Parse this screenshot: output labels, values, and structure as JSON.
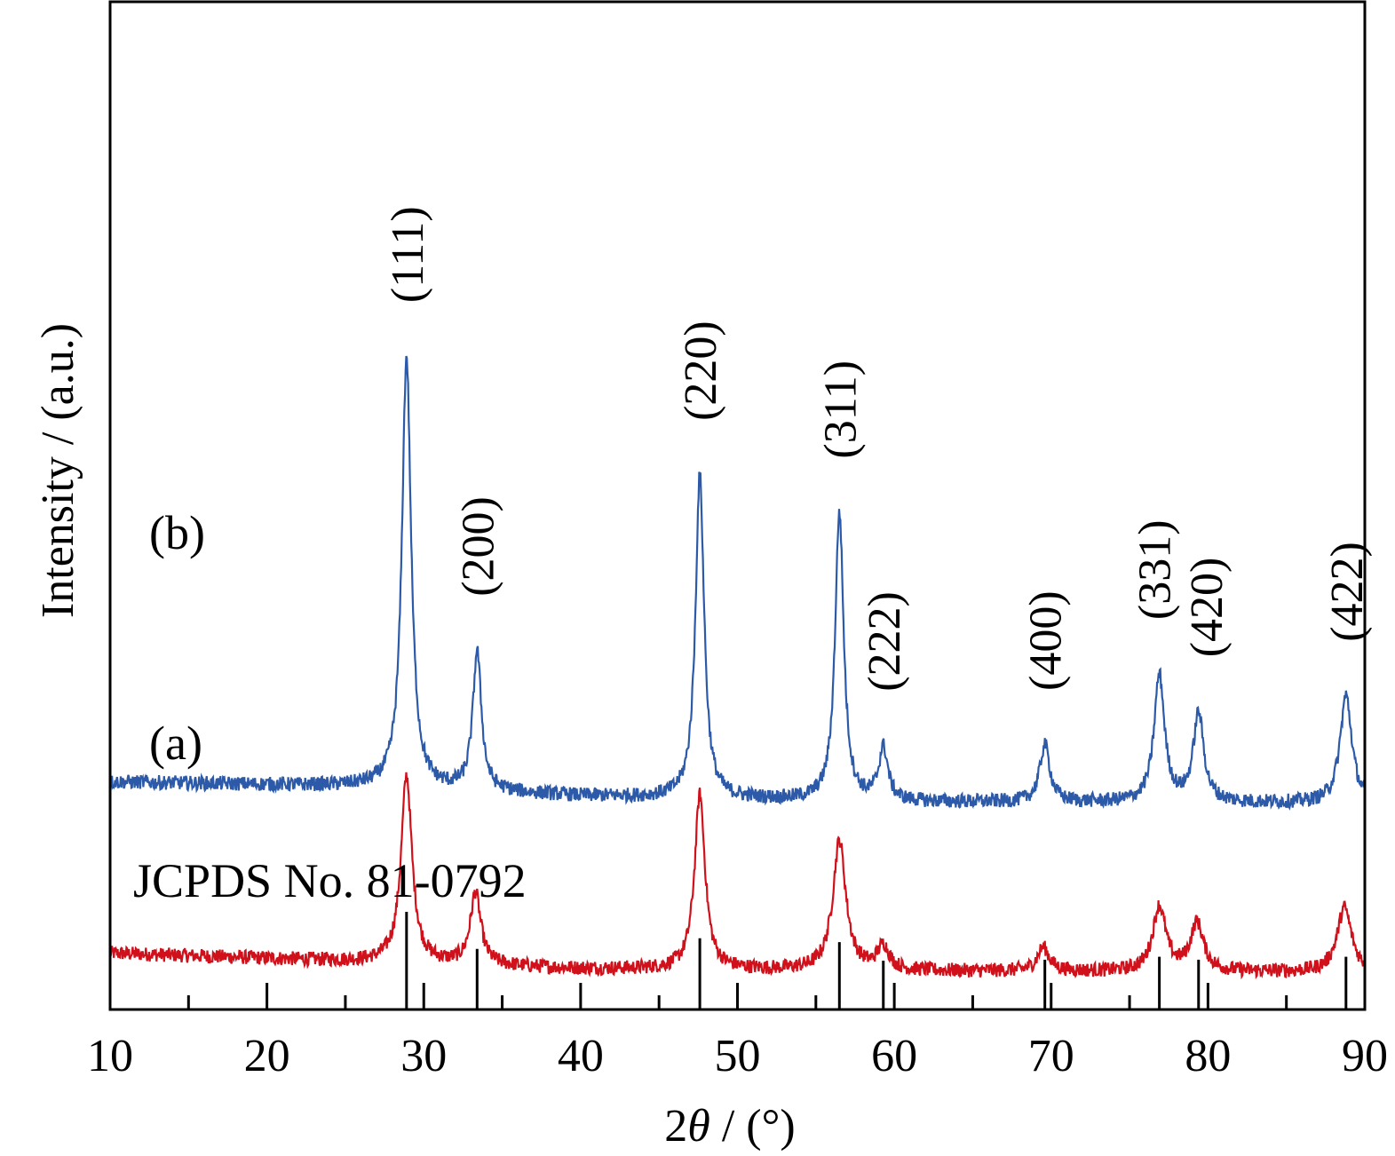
{
  "chart_data": {
    "type": "line",
    "xlabel_prefix": "2",
    "xlabel_theta": "θ",
    "xlabel_suffix": " / (°)",
    "ylabel": "Intensity / (a.u.)",
    "xlim": [
      10,
      90
    ],
    "xticks": [
      10,
      20,
      30,
      40,
      50,
      60,
      70,
      80,
      90
    ],
    "xticks_minor": [
      15,
      25,
      35,
      45,
      55,
      65,
      75,
      85
    ],
    "reference_label": "JCPDS No. 81-0792",
    "reference_lines": [
      {
        "x": 28.9,
        "rel": 1.0
      },
      {
        "x": 33.4,
        "rel": 0.62
      },
      {
        "x": 47.6,
        "rel": 0.73
      },
      {
        "x": 56.5,
        "rel": 0.69
      },
      {
        "x": 59.3,
        "rel": 0.5
      },
      {
        "x": 69.6,
        "rel": 0.51
      },
      {
        "x": 76.9,
        "rel": 0.54
      },
      {
        "x": 79.4,
        "rel": 0.51
      },
      {
        "x": 88.8,
        "rel": 0.54
      }
    ],
    "series": [
      {
        "name": "(a)",
        "color": "#d0101a",
        "baseline": [
          [
            10,
            0.235
          ],
          [
            26,
            0.2
          ],
          [
            40,
            0.17
          ],
          [
            60,
            0.16
          ],
          [
            90,
            0.155
          ]
        ],
        "peaks": [
          {
            "x": 28.9,
            "h": 0.78,
            "w": 0.42
          },
          {
            "x": 33.3,
            "h": 0.3,
            "w": 0.4
          },
          {
            "x": 47.6,
            "h": 0.73,
            "w": 0.4
          },
          {
            "x": 56.5,
            "h": 0.54,
            "w": 0.5
          },
          {
            "x": 59.3,
            "h": 0.1,
            "w": 0.45
          },
          {
            "x": 69.5,
            "h": 0.1,
            "w": 0.45
          },
          {
            "x": 76.9,
            "h": 0.27,
            "w": 0.5
          },
          {
            "x": 79.3,
            "h": 0.2,
            "w": 0.5
          },
          {
            "x": 88.7,
            "h": 0.27,
            "w": 0.55
          }
        ]
      },
      {
        "name": "(b)",
        "color": "#2c5aa8",
        "baseline": [
          [
            10,
            0.95
          ],
          [
            26,
            0.93
          ],
          [
            40,
            0.89
          ],
          [
            60,
            0.865
          ],
          [
            90,
            0.86
          ]
        ],
        "peaks": [
          {
            "x": 28.9,
            "h": 1.8,
            "w": 0.35
          },
          {
            "x": 33.4,
            "h": 0.58,
            "w": 0.33
          },
          {
            "x": 47.6,
            "h": 1.35,
            "w": 0.33
          },
          {
            "x": 56.5,
            "h": 1.2,
            "w": 0.33
          },
          {
            "x": 59.3,
            "h": 0.22,
            "w": 0.35
          },
          {
            "x": 69.6,
            "h": 0.24,
            "w": 0.38
          },
          {
            "x": 76.9,
            "h": 0.53,
            "w": 0.4
          },
          {
            "x": 79.4,
            "h": 0.37,
            "w": 0.4
          },
          {
            "x": 88.8,
            "h": 0.45,
            "w": 0.45
          }
        ]
      }
    ],
    "peak_labels": [
      {
        "text": "(111)",
        "x": 28.9
      },
      {
        "text": "(200)",
        "x": 33.4
      },
      {
        "text": "(220)",
        "x": 47.6
      },
      {
        "text": "(311)",
        "x": 56.5
      },
      {
        "text": "(222)",
        "x": 59.3
      },
      {
        "text": "(400)",
        "x": 69.6
      },
      {
        "text": "(331)",
        "x": 76.9
      },
      {
        "text": "(420)",
        "x": 79.4
      },
      {
        "text": "(422)",
        "x": 88.8
      }
    ]
  }
}
